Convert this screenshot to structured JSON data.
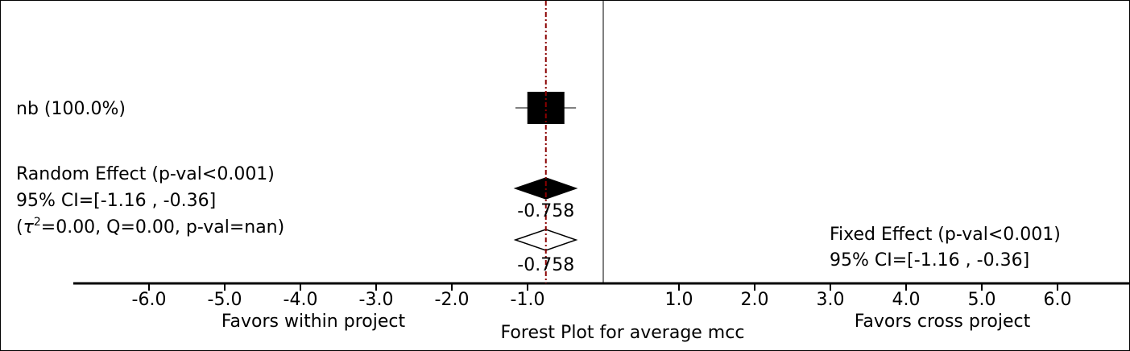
{
  "chart_data": {
    "type": "forest",
    "title": "Forest Plot for average mcc",
    "x_ticks": [
      -6.0,
      -5.0,
      -4.0,
      -3.0,
      -2.0,
      -1.0,
      1.0,
      2.0,
      3.0,
      4.0,
      5.0,
      6.0
    ],
    "x_tick_labels": [
      "-6.0",
      "-5.0",
      "-4.0",
      "-3.0",
      "-2.0",
      "-1.0",
      "1.0",
      "2.0",
      "3.0",
      "4.0",
      "5.0",
      "6.0"
    ],
    "xlim": [
      -7.0,
      7.0
    ],
    "left_label": "Favors within project",
    "right_label": "Favors cross project",
    "studies": [
      {
        "name": "nb (100.0%)",
        "effect": -0.758,
        "ci_low": -1.16,
        "ci_high": -0.36,
        "weight": 100.0
      }
    ],
    "random_effect": {
      "value": -0.758,
      "value_label": "-0.758",
      "ci": [
        -1.16,
        -0.36
      ],
      "lines": [
        "Random Effect (p-val<0.001)",
        "95% CI=[-1.16 , -0.36]",
        "(τ²=0.00, Q=0.00, p-val=nan)"
      ],
      "tau_symbol": "τ",
      "tau_sup": "2",
      "tau_rest": "=0.00, Q=0.00, p-val=nan)"
    },
    "fixed_effect": {
      "value": -0.758,
      "value_label": "-0.758",
      "ci": [
        -1.16,
        -0.36
      ],
      "lines": [
        "Fixed Effect (p-val<0.001)",
        "95% CI=[-1.16 , -0.36]"
      ]
    },
    "colors": {
      "axis": "#000000",
      "reference_line": "#8b0000",
      "marker": "#000000",
      "open_marker": "#ffffff"
    }
  }
}
